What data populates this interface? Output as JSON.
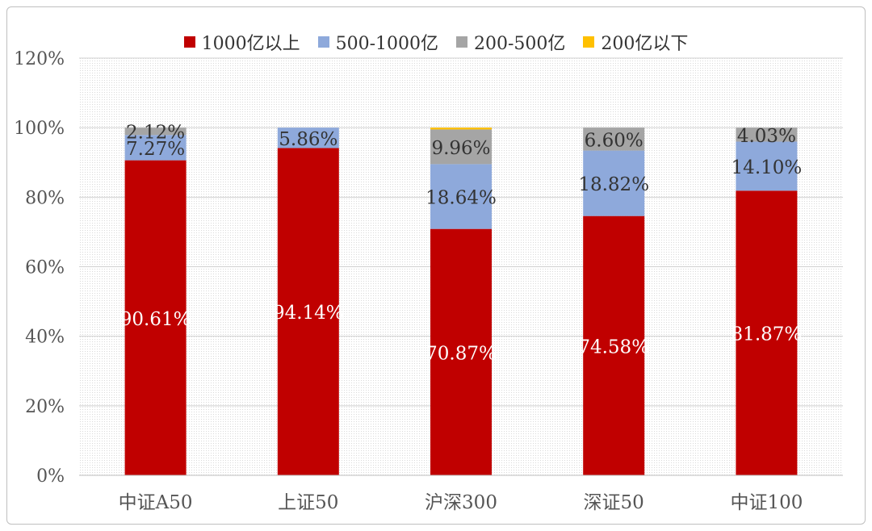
{
  "chart_data": {
    "type": "bar",
    "stacked": true,
    "categories": [
      "中证A50",
      "上证50",
      "沪深300",
      "深证50",
      "中证100"
    ],
    "series": [
      {
        "name": "1000亿以上",
        "color": "#C00000",
        "values": [
          90.61,
          94.14,
          70.87,
          74.58,
          81.87
        ],
        "labels": [
          "90.61%",
          "94.14%",
          "70.87%",
          "74.58%",
          "81.87%"
        ]
      },
      {
        "name": "500-1000亿",
        "color": "#8EA9DB",
        "values": [
          7.27,
          5.86,
          18.64,
          18.82,
          14.1
        ],
        "labels": [
          "7.27%",
          "5.86%",
          "18.64%",
          "18.82%",
          "14.10%"
        ]
      },
      {
        "name": "200-500亿",
        "color": "#A5A5A5",
        "values": [
          2.12,
          0,
          9.96,
          6.6,
          4.03
        ],
        "labels": [
          "2.12%",
          "",
          "9.96%",
          "6.60%",
          "4.03%"
        ]
      },
      {
        "name": "200亿以下",
        "color": "#FFC000",
        "values": [
          0,
          0,
          0.53,
          0,
          0
        ],
        "labels": [
          "",
          "",
          "",
          "",
          ""
        ]
      }
    ],
    "yticks": [
      "0%",
      "20%",
      "40%",
      "60%",
      "80%",
      "100%",
      "120%"
    ],
    "ylim": [
      0,
      120
    ],
    "grid": "fine-dotted",
    "legend": "top-center"
  }
}
